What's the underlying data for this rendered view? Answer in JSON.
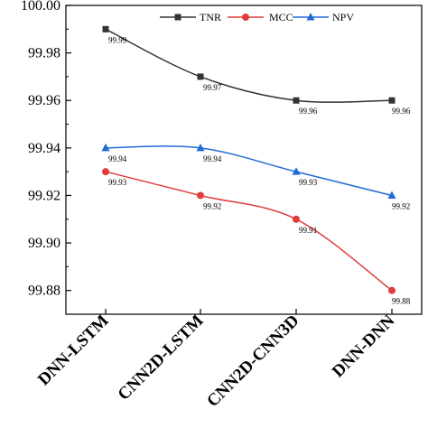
{
  "chart_data": {
    "type": "line",
    "categories": [
      "DNN-LSTM",
      "CNN2D-LSTM",
      "CNN2D-CNN3D",
      "DNN-DNN"
    ],
    "series": [
      {
        "name": "TNR",
        "values": [
          99.99,
          99.97,
          99.96,
          99.96
        ],
        "labels": [
          "99.99",
          "99.97",
          "99.96",
          "99.96"
        ],
        "color": "#333333",
        "marker": "square"
      },
      {
        "name": "MCC",
        "values": [
          99.93,
          99.92,
          99.91,
          99.88
        ],
        "labels": [
          "99.93",
          "99.92",
          "99.91",
          "99.88"
        ],
        "color": "#e03c3c",
        "marker": "circle"
      },
      {
        "name": "NPV",
        "values": [
          99.94,
          99.94,
          99.93,
          99.92
        ],
        "labels": [
          "99.94",
          "99.94",
          "99.93",
          "99.92"
        ],
        "color": "#1f6bd6",
        "marker": "triangle"
      }
    ],
    "y_ticks": [
      "99.88",
      "99.90",
      "99.92",
      "99.94",
      "99.96",
      "99.98",
      "100.00"
    ],
    "ylim": [
      99.87,
      100.0
    ],
    "title": "",
    "xlabel": "",
    "ylabel": "",
    "legend_position": "top-right",
    "grid": false
  }
}
